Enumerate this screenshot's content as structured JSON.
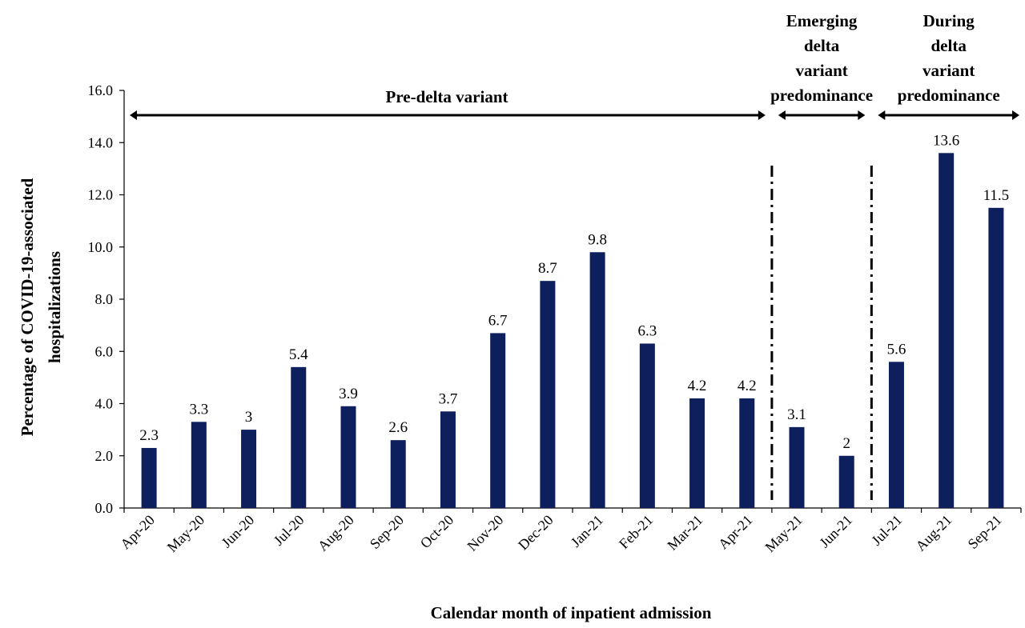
{
  "chart_data": {
    "type": "bar",
    "categories": [
      "Apr-20",
      "May-20",
      "Jun-20",
      "Jul-20",
      "Aug-20",
      "Sep-20",
      "Oct-20",
      "Nov-20",
      "Dec-20",
      "Jan-21",
      "Feb-21",
      "Mar-21",
      "Apr-21",
      "May-21",
      "Jun-21",
      "Jul-21",
      "Aug-21",
      "Sep-21"
    ],
    "values": [
      2.3,
      3.3,
      3,
      5.4,
      3.9,
      2.6,
      3.7,
      6.7,
      8.7,
      9.8,
      6.3,
      4.2,
      4.2,
      3.1,
      2,
      5.6,
      13.6,
      11.5
    ],
    "data_labels": [
      "2.3",
      "3.3",
      "3",
      "5.4",
      "3.9",
      "2.6",
      "3.7",
      "6.7",
      "8.7",
      "9.8",
      "6.3",
      "4.2",
      "4.2",
      "3.1",
      "2",
      "5.6",
      "13.6",
      "11.5"
    ],
    "xlabel": "Calendar month of inpatient admission",
    "ylabel_lines": [
      "Percentage of COVID-19-associated",
      "hospitalizations"
    ],
    "ylim": [
      0,
      16
    ],
    "yticks": [
      "0.0",
      "2.0",
      "4.0",
      "6.0",
      "8.0",
      "10.0",
      "12.0",
      "14.0",
      "16.0"
    ],
    "grid": false,
    "legend": "none",
    "bar_color": "#0d1f5c",
    "periods": [
      {
        "lines": [
          "Pre-delta variant"
        ],
        "start_index": 0,
        "end_index": 12
      },
      {
        "lines": [
          "Emerging",
          "delta",
          "variant",
          "predominance"
        ],
        "start_index": 13,
        "end_index": 14
      },
      {
        "lines": [
          "During",
          "delta",
          "variant",
          "predominance"
        ],
        "start_index": 15,
        "end_index": 17
      }
    ],
    "dividers_after_index": [
      12,
      14
    ]
  }
}
